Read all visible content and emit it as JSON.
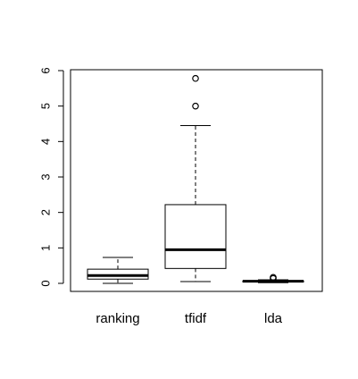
{
  "chart_data": {
    "type": "boxplot",
    "title": "",
    "xlabel": "",
    "ylabel": "",
    "ylim": [
      -0.2,
      6.0
    ],
    "yticks": [
      0,
      1,
      2,
      3,
      4,
      5,
      6
    ],
    "ytick_labels": [
      "0",
      "1",
      "2",
      "3",
      "4",
      "5",
      "6"
    ],
    "grid": false,
    "categories": [
      "ranking",
      "tfidf",
      "lda"
    ],
    "boxes": [
      {
        "category": "ranking",
        "whisker_low": 0.0,
        "q1": 0.12,
        "median": 0.22,
        "q3": 0.4,
        "whisker_high": 0.73,
        "outliers": []
      },
      {
        "category": "tfidf",
        "whisker_low": 0.05,
        "q1": 0.42,
        "median": 0.95,
        "q3": 2.22,
        "whisker_high": 4.45,
        "outliers": [
          5.0,
          5.78
        ]
      },
      {
        "category": "lda",
        "whisker_low": 0.02,
        "q1": 0.04,
        "median": 0.06,
        "q3": 0.07,
        "whisker_high": 0.1,
        "outliers": [
          0.14,
          0.17
        ]
      }
    ]
  }
}
